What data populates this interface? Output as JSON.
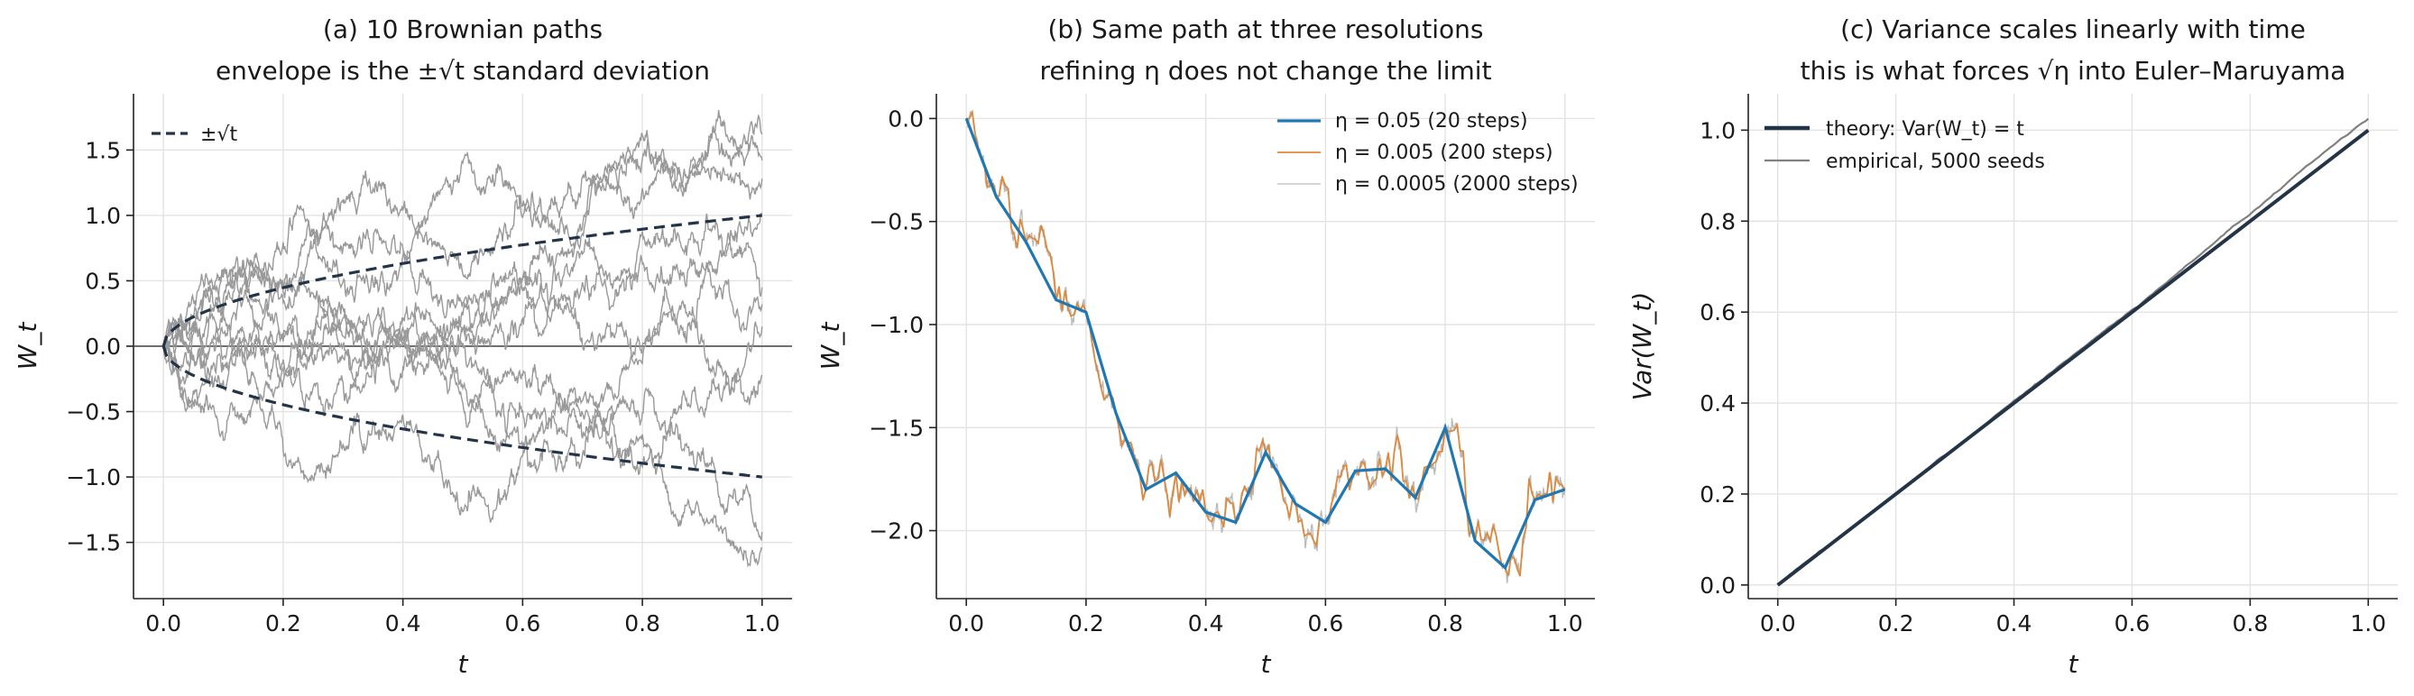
{
  "chart_data": [
    {
      "type": "line",
      "title": "(a) 10 Brownian paths",
      "subtitle": "envelope is the ±√t standard deviation",
      "xlabel": "t",
      "ylabel": "W_t",
      "xlim": [
        -0.05,
        1.05
      ],
      "ylim": [
        -1.93,
        1.93
      ],
      "xticks": [
        0.0,
        0.2,
        0.4,
        0.6,
        0.8,
        1.0
      ],
      "xtick_labels": [
        "0.0",
        "0.2",
        "0.4",
        "0.6",
        "0.8",
        "1.0"
      ],
      "yticks": [
        -1.5,
        -1.0,
        -0.5,
        0.0,
        0.5,
        1.0,
        1.5
      ],
      "ytick_labels": [
        "−1.5",
        "−1.0",
        "−0.5",
        "0.0",
        "0.5",
        "1.0",
        "1.5"
      ],
      "grid": true,
      "legend_position": "top-left",
      "legend": [
        {
          "label": "±√t",
          "color": "#243447",
          "style": "dashed"
        }
      ],
      "envelope": {
        "label": "±√t",
        "function": "±sqrt(t)",
        "color": "#243447"
      },
      "paths_count": 10,
      "paths_color": "#999999",
      "paths_endpoints": [
        1.62,
        1.42,
        1.28,
        1.02,
        0.45,
        0.32,
        0.15,
        -0.22,
        -1.42,
        -1.55
      ],
      "paths_extremes": [
        1.72,
        -1.76
      ],
      "zero_line": true
    },
    {
      "type": "line",
      "title": "(b) Same path at three resolutions",
      "subtitle": "refining η does not change the limit",
      "xlabel": "t",
      "ylabel": "W_t",
      "xlim": [
        -0.05,
        1.05
      ],
      "ylim": [
        -2.33,
        0.12
      ],
      "xticks": [
        0.0,
        0.2,
        0.4,
        0.6,
        0.8,
        1.0
      ],
      "xtick_labels": [
        "0.0",
        "0.2",
        "0.4",
        "0.6",
        "0.8",
        "1.0"
      ],
      "yticks": [
        -2.0,
        -1.5,
        -1.0,
        -0.5,
        0.0
      ],
      "ytick_labels": [
        "−2.0",
        "−1.5",
        "−1.0",
        "−0.5",
        "0.0"
      ],
      "grid": true,
      "legend_position": "top-right",
      "series": [
        {
          "name": "η = 0.05 (20 steps)",
          "color": "#1f77b4",
          "x": [
            0.0,
            0.05,
            0.1,
            0.15,
            0.2,
            0.25,
            0.3,
            0.35,
            0.4,
            0.45,
            0.5,
            0.55,
            0.6,
            0.65,
            0.7,
            0.75,
            0.8,
            0.85,
            0.9,
            0.95,
            1.0
          ],
          "y": [
            0.0,
            -0.38,
            -0.6,
            -0.88,
            -0.94,
            -1.43,
            -1.8,
            -1.72,
            -1.91,
            -1.96,
            -1.62,
            -1.87,
            -1.96,
            -1.71,
            -1.7,
            -1.84,
            -1.5,
            -2.05,
            -2.18,
            -1.85,
            -1.8
          ]
        },
        {
          "name": "η = 0.005 (200 steps)",
          "color": "#dd8a3e",
          "x_range": [
            0.0,
            1.0
          ],
          "steps": 200
        },
        {
          "name": "η = 0.0005 (2000 steps)",
          "color": "#bbbbbb",
          "x_range": [
            0.0,
            1.0
          ],
          "steps": 2000
        }
      ]
    },
    {
      "type": "line",
      "title": "(c) Variance scales linearly with time",
      "subtitle": "this is what forces √η into Euler–Maruyama",
      "xlabel": "t",
      "ylabel": "Var(W_t)",
      "xlim": [
        -0.05,
        1.05
      ],
      "ylim": [
        -0.03,
        1.08
      ],
      "xticks": [
        0.0,
        0.2,
        0.4,
        0.6,
        0.8,
        1.0
      ],
      "xtick_labels": [
        "0.0",
        "0.2",
        "0.4",
        "0.6",
        "0.8",
        "1.0"
      ],
      "yticks": [
        0.0,
        0.2,
        0.4,
        0.6,
        0.8,
        1.0
      ],
      "ytick_labels": [
        "0.0",
        "0.2",
        "0.4",
        "0.6",
        "0.8",
        "1.0"
      ],
      "grid": true,
      "legend_position": "top-left",
      "series": [
        {
          "name": "theory: Var(W_t) = t",
          "color": "#243447",
          "x": [
            0.0,
            1.0
          ],
          "y": [
            0.0,
            1.0
          ]
        },
        {
          "name": "empirical, 5000 seeds",
          "color": "#808080",
          "x": [
            0.0,
            0.1,
            0.2,
            0.3,
            0.4,
            0.5,
            0.6,
            0.7,
            0.8,
            0.9,
            1.0
          ],
          "y": [
            0.0,
            0.1,
            0.2,
            0.3,
            0.405,
            0.505,
            0.605,
            0.71,
            0.815,
            0.925,
            1.025
          ]
        }
      ]
    }
  ]
}
